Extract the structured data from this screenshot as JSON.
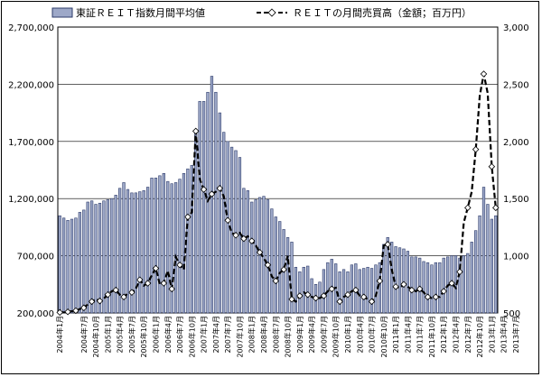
{
  "chart_data": {
    "type": "bar+line",
    "legend": {
      "placement": "top",
      "bar_label": "東証ＲＥＩＴ指数月間平均値",
      "line_label": "ＲＥＩＴの月間売買高（金額；百万円）"
    },
    "left_axis": {
      "ylim": [
        200000,
        2700000
      ],
      "ticks": [
        "200,000",
        "700,000",
        "1,200,000",
        "1,700,000",
        "2,200,000",
        "2,700,000"
      ]
    },
    "right_axis": {
      "ylim": [
        500,
        3000
      ],
      "ticks": [
        "500",
        "1,000",
        "1,500",
        "2,000",
        "2,500",
        "3,000"
      ]
    },
    "x_tick_labels": [
      "2004年1月",
      "2004年7月",
      "2004年10月",
      "2005年1月",
      "2005年4月",
      "2005年7月",
      "2005年10月",
      "2006年1月",
      "2006年4月",
      "2006年7月",
      "2006年10月",
      "2007年1月",
      "2007年4月",
      "2007年7月",
      "2007年10月",
      "2008年1月",
      "2008年4月",
      "2008年7月",
      "2008年10月",
      "2009年1月",
      "2009年4月",
      "2009年7月",
      "2009年10月",
      "2010年1月",
      "2010年4月",
      "2010年7月",
      "2010年10月",
      "2011年1月",
      "2011年4月",
      "2011年7月",
      "2011年10月",
      "2012年1月",
      "2012年4月",
      "2012年7月",
      "2012年10月",
      "2013年1月",
      "2013年4月",
      "2013年7月"
    ],
    "bar_values": [
      1050000,
      1030000,
      1010000,
      1020000,
      1030000,
      1080000,
      1100000,
      1170000,
      1180000,
      1150000,
      1160000,
      1180000,
      1190000,
      1200000,
      1230000,
      1290000,
      1340000,
      1280000,
      1250000,
      1250000,
      1260000,
      1270000,
      1300000,
      1380000,
      1380000,
      1400000,
      1420000,
      1350000,
      1330000,
      1340000,
      1370000,
      1420000,
      1460000,
      1490000,
      1790000,
      2050000,
      2050000,
      2130000,
      2270000,
      2130000,
      1950000,
      1780000,
      1700000,
      1650000,
      1620000,
      1560000,
      1290000,
      1270000,
      1170000,
      1190000,
      1210000,
      1220000,
      1190000,
      1110000,
      1040000,
      1000000,
      930000,
      860000,
      820000,
      600000,
      560000,
      600000,
      610000,
      500000,
      450000,
      470000,
      580000,
      640000,
      670000,
      630000,
      560000,
      580000,
      560000,
      620000,
      630000,
      580000,
      590000,
      600000,
      590000,
      620000,
      640000,
      800000,
      860000,
      820000,
      780000,
      770000,
      760000,
      740000,
      690000,
      690000,
      680000,
      650000,
      640000,
      620000,
      640000,
      640000,
      680000,
      690000,
      700000,
      700000,
      680000,
      700000,
      720000,
      820000,
      920000,
      1050000,
      1300000,
      1150000,
      1020000,
      1050000
    ],
    "line_values": [
      505,
      505,
      510,
      515,
      520,
      535,
      545,
      575,
      600,
      620,
      605,
      625,
      660,
      690,
      700,
      660,
      640,
      670,
      680,
      710,
      790,
      740,
      760,
      830,
      890,
      750,
      760,
      870,
      710,
      990,
      920,
      880,
      1340,
      1380,
      2090,
      1670,
      1580,
      1480,
      1540,
      1560,
      1590,
      1520,
      1310,
      1200,
      1180,
      1200,
      1150,
      1170,
      1130,
      1090,
      1030,
      980,
      920,
      820,
      780,
      850,
      880,
      1000,
      620,
      600,
      650,
      680,
      660,
      640,
      630,
      630,
      650,
      690,
      710,
      720,
      600,
      640,
      660,
      690,
      700,
      650,
      640,
      620,
      600,
      650,
      780,
      1090,
      1100,
      880,
      730,
      720,
      750,
      730,
      700,
      690,
      710,
      680,
      640,
      630,
      640,
      640,
      690,
      740,
      760,
      720,
      860,
      1290,
      1420,
      1560,
      1930,
      2400,
      2590,
      2420,
      1780,
      1420
    ]
  },
  "colors": {
    "bar_fill": "#9da8c8",
    "bar_edge": "#2d3b6a",
    "line": "#000000"
  }
}
